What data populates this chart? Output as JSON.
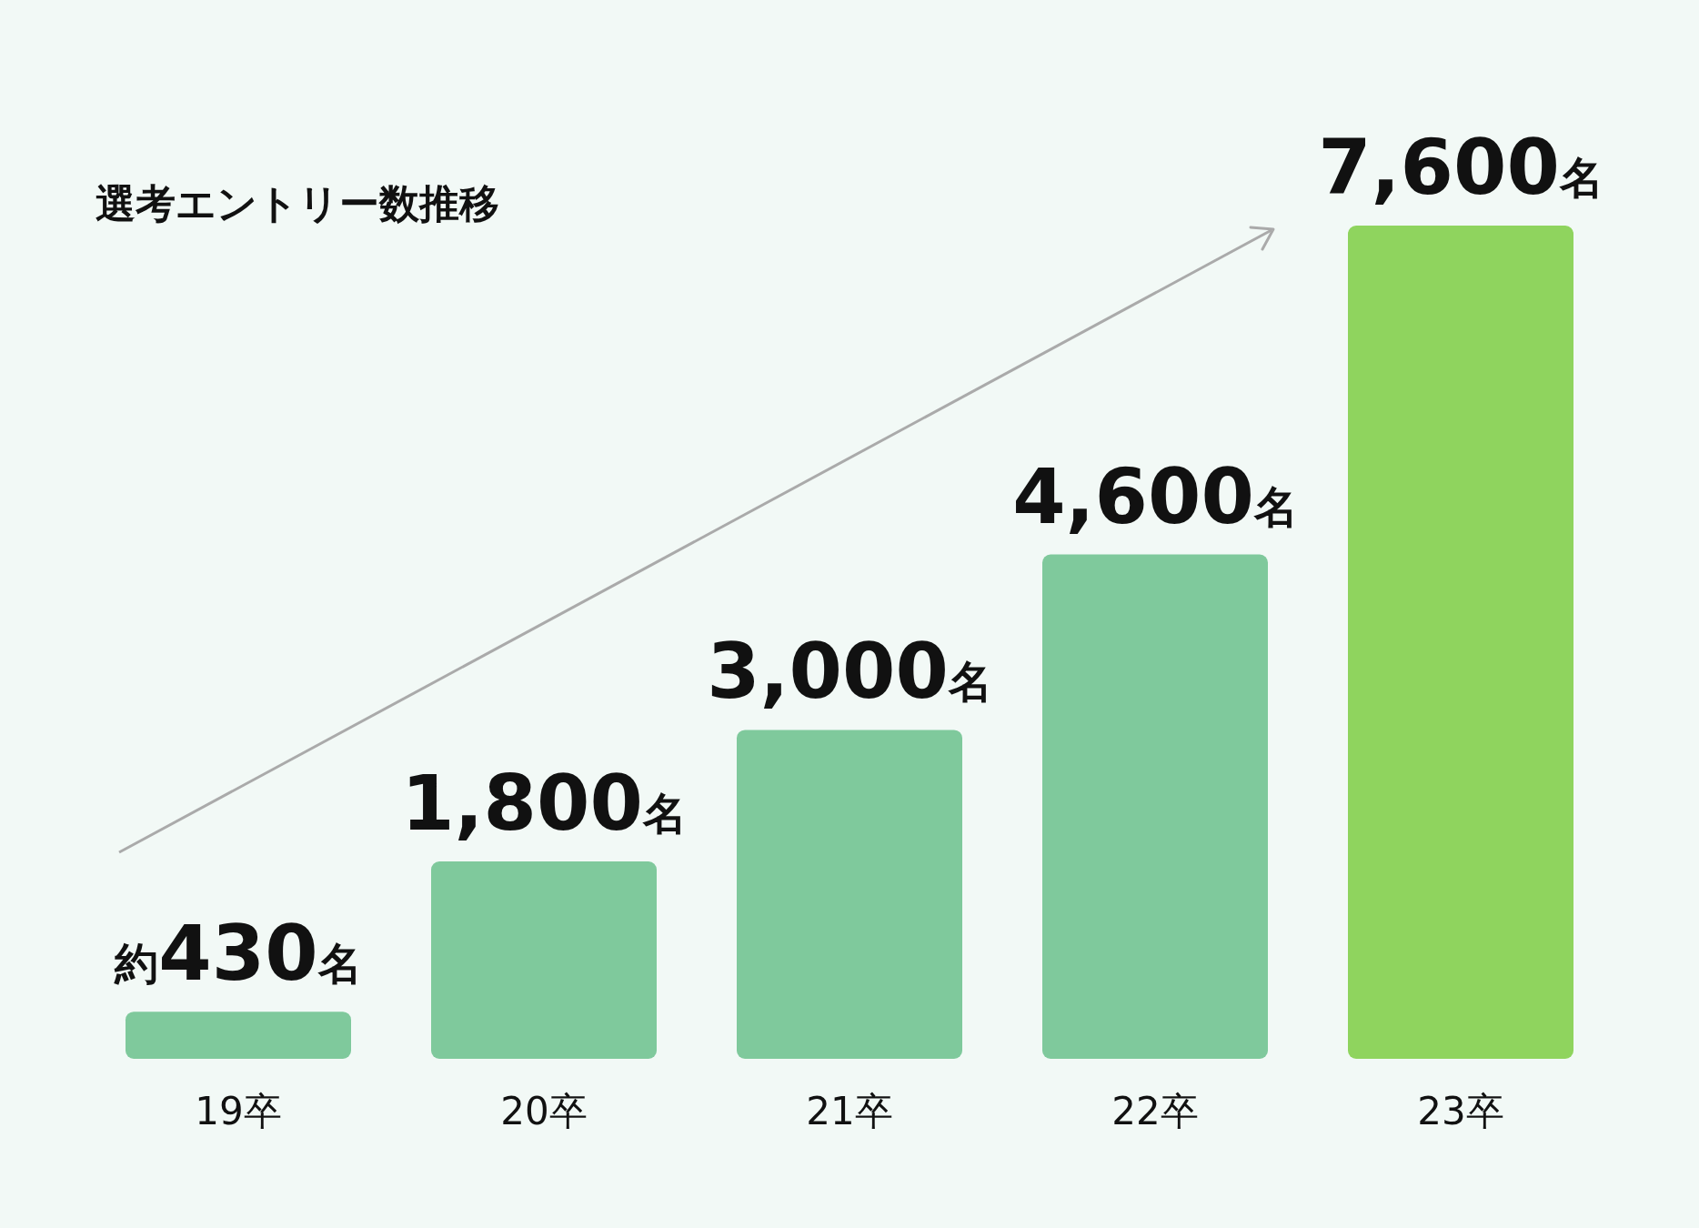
{
  "chart_data": {
    "type": "bar",
    "title": "選考エントリー数推移",
    "categories": [
      "19卒",
      "20卒",
      "21卒",
      "22卒",
      "23卒"
    ],
    "values": [
      430,
      1800,
      3000,
      4600,
      7600
    ],
    "value_labels": [
      "約430名",
      "1,800名",
      "3,000名",
      "4,600名",
      "7,600名"
    ],
    "colors": [
      "#7fc99c",
      "#7fc99c",
      "#7fc99c",
      "#7fc99c",
      "#8fd45e"
    ],
    "grid": false
  }
}
